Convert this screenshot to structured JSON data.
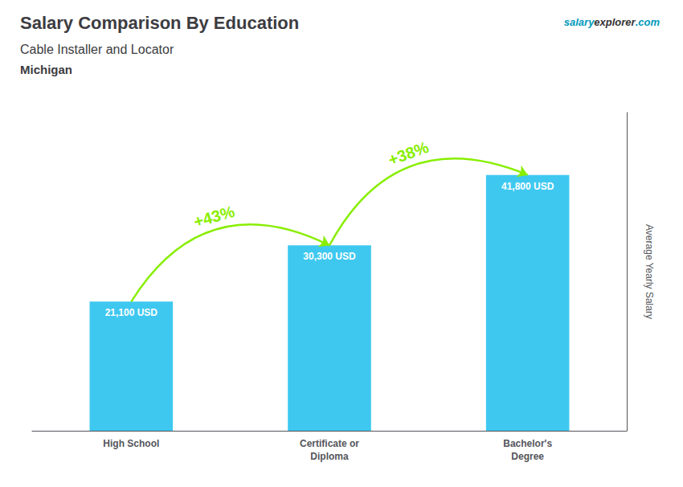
{
  "chart_data": {
    "type": "bar",
    "title": "Salary Comparison By Education",
    "subtitle": "Cable Installer and Locator",
    "location": "Michigan",
    "brand": [
      "salary",
      "explorer",
      ".com"
    ],
    "ylabel": "Average Yearly Salary",
    "categories": [
      "High School",
      "Certificate or\nDiploma",
      "Bachelor's\nDegree"
    ],
    "values": [
      21100,
      30300,
      41800
    ],
    "value_labels": [
      "21,100 USD",
      "30,300 USD",
      "41,800 USD"
    ],
    "data_labels": true,
    "color": "#3ec8f0",
    "annotations": [
      {
        "text": "+43%",
        "color": "#88ee00"
      },
      {
        "text": "+38%",
        "color": "#88ee00"
      }
    ],
    "ylim": [
      0,
      52000
    ],
    "tick_labels": "x",
    "grid": false
  }
}
